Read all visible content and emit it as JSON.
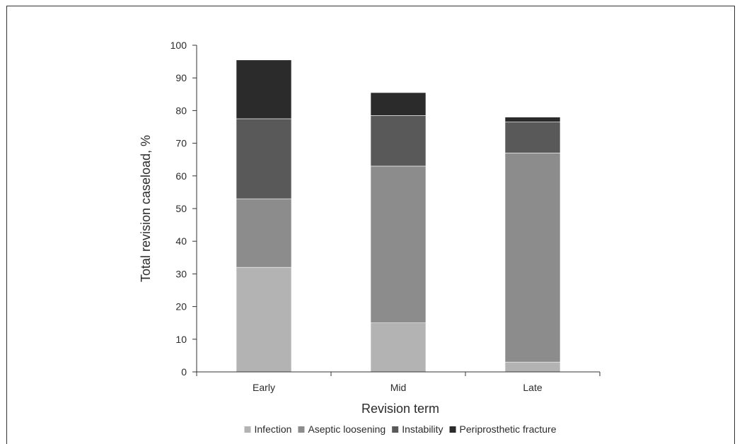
{
  "chart_data": {
    "type": "bar",
    "stacked": true,
    "title": "",
    "xlabel": "Revision term",
    "ylabel": "Total revision caseload, %",
    "ylim": [
      0,
      100
    ],
    "yticks": [
      0,
      10,
      20,
      30,
      40,
      50,
      60,
      70,
      80,
      90,
      100
    ],
    "categories": [
      "Early",
      "Mid",
      "Late"
    ],
    "series": [
      {
        "name": "Infection",
        "color": "#b3b3b3",
        "values": [
          32,
          15,
          3
        ]
      },
      {
        "name": "Aseptic loosening",
        "color": "#8c8c8c",
        "values": [
          21,
          48,
          64
        ]
      },
      {
        "name": "Instability",
        "color": "#595959",
        "values": [
          24.5,
          15.5,
          9.5
        ]
      },
      {
        "name": "Periprosthetic fracture",
        "color": "#2b2b2b",
        "values": [
          18,
          7,
          1.5
        ]
      }
    ],
    "legend_position": "bottom",
    "grid": false
  }
}
